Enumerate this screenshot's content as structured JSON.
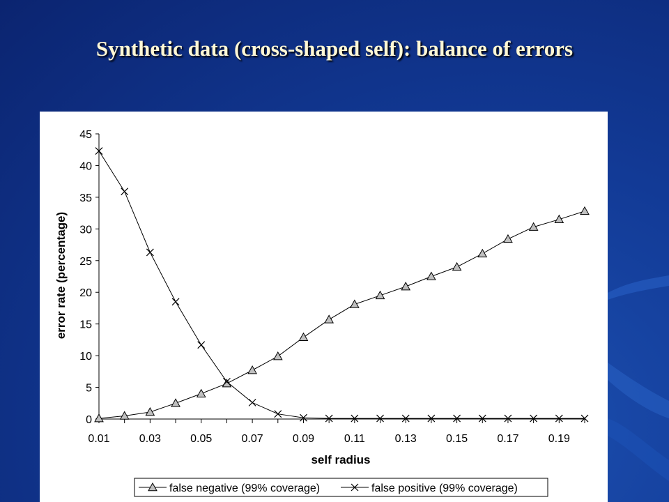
{
  "slide": {
    "title": "Synthetic data (cross-shaped self): balance of errors"
  },
  "colors": {
    "background": "#123a96",
    "title": "#fff8d6",
    "panel": "#ffffff",
    "marker_fill": "#c0c0c0",
    "line": "#000000"
  },
  "chart_data": {
    "type": "line",
    "title": "",
    "xlabel": "self radius",
    "ylabel": "error rate (percentage)",
    "ylim": [
      0,
      45
    ],
    "yticks": [
      "0",
      "5",
      "10",
      "15",
      "20",
      "25",
      "30",
      "35",
      "40",
      "45"
    ],
    "x": [
      0.01,
      0.02,
      0.03,
      0.04,
      0.05,
      0.06,
      0.07,
      0.08,
      0.09,
      0.1,
      0.11,
      0.12,
      0.13,
      0.14,
      0.15,
      0.16,
      0.17,
      0.18,
      0.19,
      0.2
    ],
    "xtick_labels": [
      "0.01",
      "0.03",
      "0.05",
      "0.07",
      "0.09",
      "0.11",
      "0.13",
      "0.15",
      "0.17",
      "0.19"
    ],
    "grid": false,
    "legend_position": "bottom",
    "series": [
      {
        "name": "false negative (99% coverage)",
        "marker": "triangle",
        "values": [
          0.1,
          0.5,
          1.1,
          2.5,
          4.0,
          5.6,
          7.7,
          9.9,
          12.9,
          15.7,
          18.1,
          19.5,
          20.9,
          22.5,
          24.0,
          26.1,
          28.4,
          30.3,
          31.5,
          32.8
        ]
      },
      {
        "name": "false positive (99% coverage)",
        "marker": "x",
        "values": [
          42.3,
          35.9,
          26.3,
          18.5,
          11.7,
          5.9,
          2.6,
          0.8,
          0.2,
          0.1,
          0.1,
          0.1,
          0.1,
          0.1,
          0.1,
          0.1,
          0.1,
          0.1,
          0.1,
          0.1
        ]
      }
    ]
  }
}
